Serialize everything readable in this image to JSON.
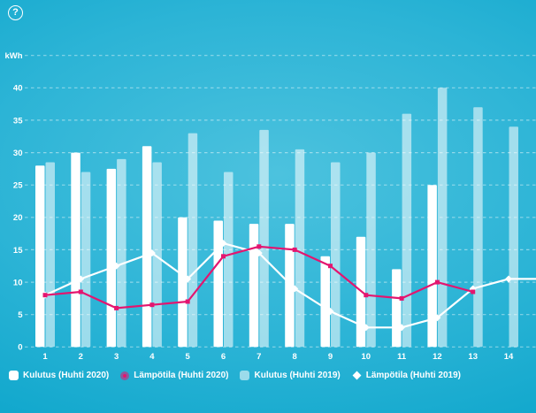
{
  "help": {
    "symbol": "?"
  },
  "colors": {
    "background_center": "#4cc2de",
    "background_edge": "#009fc6",
    "bar_2020": "#ffffff",
    "bar_2019": "rgba(255,255,255,0.55)",
    "line_2020": "#e4156f",
    "line_2019": "#ffffff",
    "text": "#ffffff",
    "gridline": "rgba(255,255,255,0.45)"
  },
  "chart_data": {
    "type": "bar+line combo",
    "title": "",
    "y_axis": {
      "unit_label": "kWh",
      "ticks": [
        40,
        35,
        30,
        25,
        20,
        15,
        10,
        5,
        0
      ],
      "range": [
        0,
        45
      ],
      "grid": "dashed horizontal lines every 5 kWh, topmost line labeled kWh"
    },
    "x_axis": {
      "categories": [
        "1",
        "2",
        "3",
        "4",
        "5",
        "6",
        "7",
        "8",
        "9",
        "10",
        "11",
        "12",
        "13",
        "14"
      ]
    },
    "series": [
      {
        "name": "Kulutus (Huhti 2020)",
        "type": "bar",
        "color_key": "bar_2020",
        "values": [
          28,
          30,
          27.5,
          31,
          20,
          19.5,
          19,
          19,
          14,
          17,
          12,
          25,
          null,
          null
        ]
      },
      {
        "name": "Lämpötila (Huhti 2020)",
        "type": "line",
        "marker": "square",
        "color_key": "line_2020",
        "values": [
          8,
          8.5,
          6,
          6.5,
          7,
          14,
          15.5,
          15,
          12.5,
          8,
          7.5,
          10,
          8.5,
          null
        ]
      },
      {
        "name": "Kulutus (Huhti 2019)",
        "type": "bar",
        "color_key": "bar_2019",
        "values": [
          28.5,
          27,
          29,
          28.5,
          33,
          27,
          33.5,
          30.5,
          28.5,
          30,
          36,
          40,
          37,
          34
        ]
      },
      {
        "name": "Lämpötila (Huhti 2019)",
        "type": "line",
        "marker": "diamond",
        "color_key": "line_2019",
        "values": [
          8,
          10.5,
          12.5,
          14.5,
          10.5,
          16,
          14.5,
          9,
          5.5,
          3,
          3,
          4.5,
          9,
          10.5
        ],
        "extends_to_right_edge": true
      }
    ],
    "legend": {
      "position": "bottom",
      "items": [
        {
          "label": "Kulutus (Huhti 2020)",
          "marker": "white-square"
        },
        {
          "label": "Lämpötila (Huhti 2020)",
          "marker": "pink-dot"
        },
        {
          "label": "Kulutus (Huhti 2019)",
          "marker": "lightblue-square"
        },
        {
          "label": "Lämpötila (Huhti 2019)",
          "marker": "white-diamond"
        }
      ]
    }
  }
}
